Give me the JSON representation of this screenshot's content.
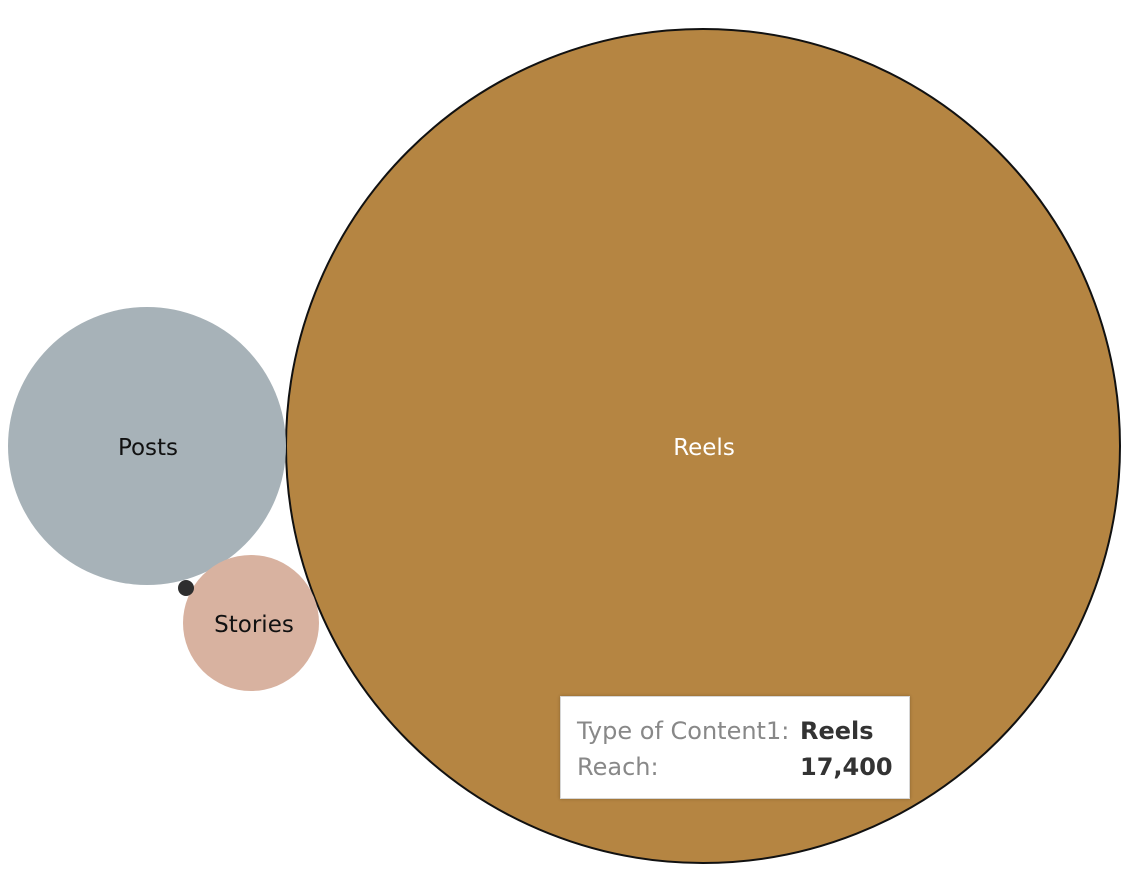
{
  "chart_data": {
    "type": "bubble",
    "title": "",
    "measure": "Reach",
    "dimension": "Type of Content1",
    "bubbles": [
      {
        "label": "Reels",
        "value": 17400,
        "color": "#b58542"
      },
      {
        "label": "Posts",
        "color": "#a7b2b8"
      },
      {
        "label": "Stories",
        "color": "#d8b2a0"
      },
      {
        "label": "",
        "color": "#2e2e2e"
      }
    ]
  },
  "tooltip": {
    "key1": "Type of Content1:",
    "val1": "Reels",
    "key2": "Reach:",
    "val2": "17,400"
  }
}
